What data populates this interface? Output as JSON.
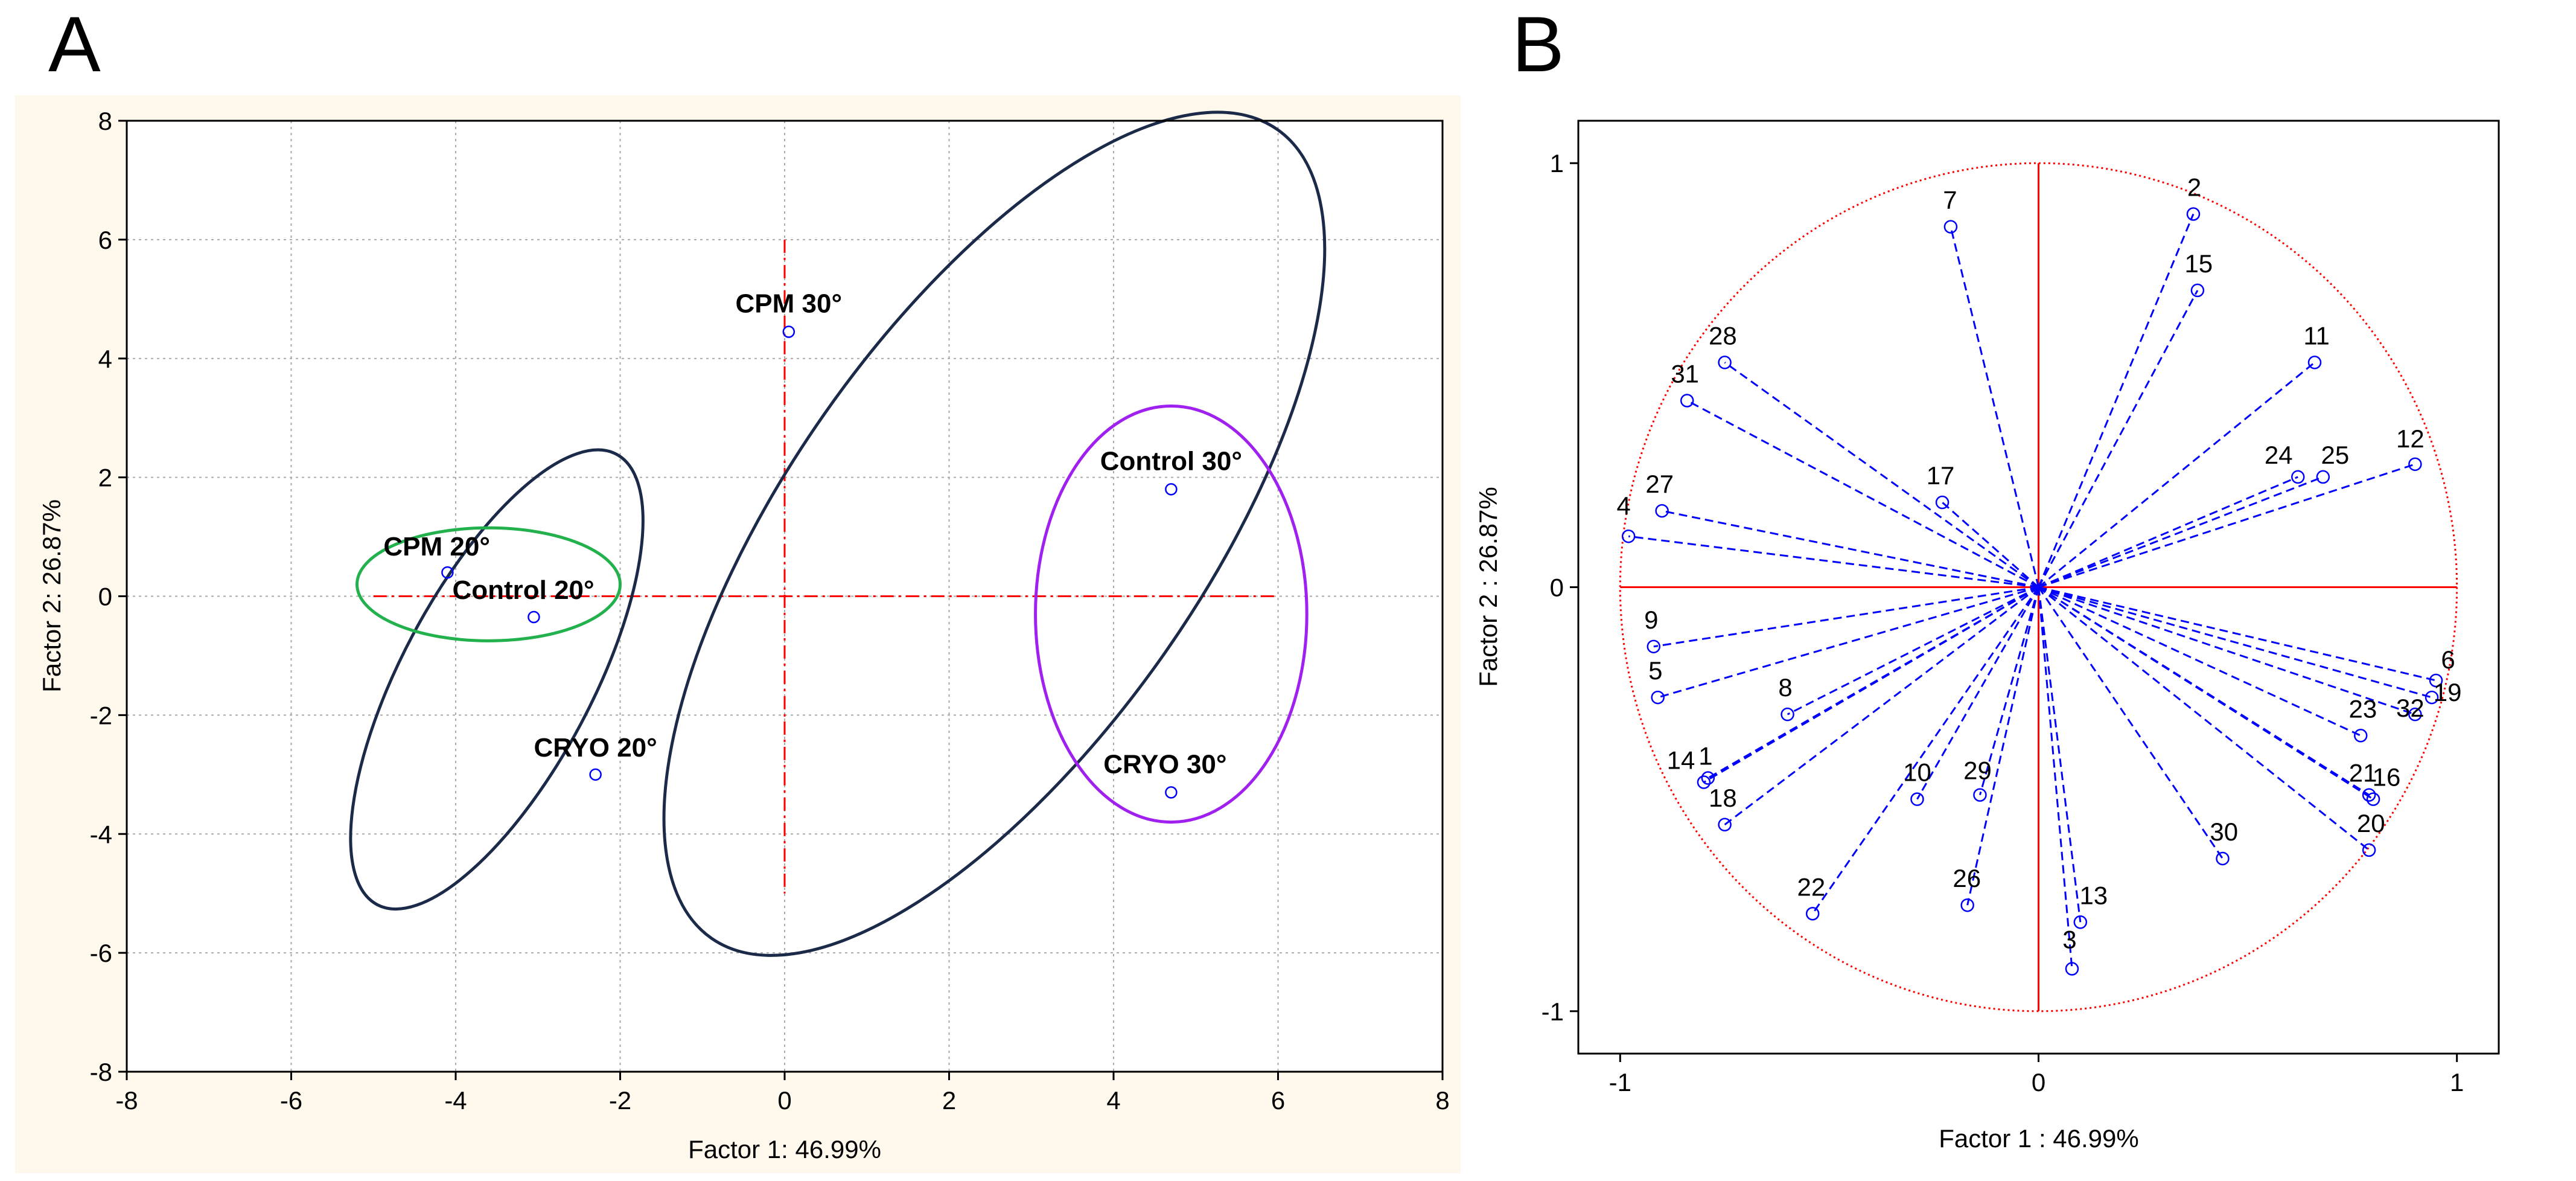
{
  "panel_labels": [
    "A",
    "B"
  ],
  "chart_data": [
    {
      "type": "scatter",
      "title": "",
      "xlabel": "Factor 1: 46.99%",
      "ylabel": "Factor 2: 26.87%",
      "xlim": [
        -8,
        8
      ],
      "ylim": [
        -8,
        8
      ],
      "xticks": [
        -8,
        -6,
        -4,
        -2,
        0,
        2,
        4,
        6,
        8
      ],
      "yticks": [
        -8,
        -6,
        -4,
        -2,
        0,
        2,
        4,
        6,
        8
      ],
      "grid": true,
      "point_color": "#0000ff",
      "points": [
        {
          "label": "CPM 20°",
          "x": -4.1,
          "y": 0.4
        },
        {
          "label": "Control 20°",
          "x": -3.05,
          "y": -0.35
        },
        {
          "label": "CRYO 20°",
          "x": -2.3,
          "y": -3.0
        },
        {
          "label": "CPM 30°",
          "x": 0.05,
          "y": 4.45
        },
        {
          "label": "Control 30°",
          "x": 4.7,
          "y": 1.8
        },
        {
          "label": "CRYO 30°",
          "x": 4.7,
          "y": -3.3
        }
      ],
      "ellipses": [
        {
          "group": "20° samples",
          "cx": -3.5,
          "cy": -1.4,
          "rx": 3.1,
          "ry": 1.6,
          "angle_deg": -62,
          "color": "#1c2a4a"
        },
        {
          "group": "CPM 20° / Control 20°",
          "cx": -3.6,
          "cy": 0.2,
          "rx": 1.6,
          "ry": 0.95,
          "angle_deg": 0,
          "color": "#22b14c"
        },
        {
          "group": "30° samples",
          "cx": 2.55,
          "cy": 1.05,
          "rx": 6.0,
          "ry": 3.5,
          "angle_deg": -55,
          "color": "#1c2a4a"
        },
        {
          "group": "Control 30° / CRYO 30°",
          "cx": 4.7,
          "cy": -0.3,
          "rx": 1.65,
          "ry": 3.5,
          "angle_deg": 0,
          "color": "#a020f0"
        }
      ],
      "reference_lines": {
        "color": "#ff0000",
        "horizontal_y": 0,
        "horizontal_x_range": [
          -5,
          6
        ],
        "vertical_x": 0,
        "vertical_y_range": [
          -5,
          6
        ]
      }
    },
    {
      "type": "scatter",
      "subtype": "correlation circle (loadings)",
      "title": "",
      "xlabel": "Factor 1 : 46.99%",
      "ylabel": "Factor 2 : 26.87%",
      "xlim": [
        -1.1,
        1.1
      ],
      "ylim": [
        -1.1,
        1.1
      ],
      "xticks": [
        -1,
        0,
        1
      ],
      "yticks": [
        -1,
        0,
        1
      ],
      "grid": false,
      "circle_color": "#ff0000",
      "vector_color": "#0000ff",
      "points": [
        {
          "label": "2",
          "x": 0.37,
          "y": 0.88
        },
        {
          "label": "7",
          "x": -0.21,
          "y": 0.85
        },
        {
          "label": "15",
          "x": 0.38,
          "y": 0.7
        },
        {
          "label": "11",
          "x": 0.66,
          "y": 0.53
        },
        {
          "label": "28",
          "x": -0.75,
          "y": 0.53
        },
        {
          "label": "31",
          "x": -0.84,
          "y": 0.44
        },
        {
          "label": "24",
          "x": 0.62,
          "y": 0.26
        },
        {
          "label": "25",
          "x": 0.68,
          "y": 0.26
        },
        {
          "label": "12",
          "x": 0.9,
          "y": 0.29
        },
        {
          "label": "17",
          "x": -0.23,
          "y": 0.2
        },
        {
          "label": "27",
          "x": -0.9,
          "y": 0.18
        },
        {
          "label": "4",
          "x": -0.98,
          "y": 0.12
        },
        {
          "label": "9",
          "x": -0.92,
          "y": -0.14
        },
        {
          "label": "5",
          "x": -0.91,
          "y": -0.26
        },
        {
          "label": "8",
          "x": -0.6,
          "y": -0.3
        },
        {
          "label": "6",
          "x": 0.95,
          "y": -0.22
        },
        {
          "label": "19",
          "x": 0.94,
          "y": -0.26
        },
        {
          "label": "32",
          "x": 0.9,
          "y": -0.3
        },
        {
          "label": "23",
          "x": 0.77,
          "y": -0.35
        },
        {
          "label": "1",
          "x": -0.79,
          "y": -0.45
        },
        {
          "label": "14",
          "x": -0.8,
          "y": -0.46
        },
        {
          "label": "18",
          "x": -0.75,
          "y": -0.56
        },
        {
          "label": "10",
          "x": -0.29,
          "y": -0.5
        },
        {
          "label": "29",
          "x": -0.14,
          "y": -0.49
        },
        {
          "label": "21",
          "x": 0.79,
          "y": -0.49
        },
        {
          "label": "16",
          "x": 0.8,
          "y": -0.5
        },
        {
          "label": "20",
          "x": 0.79,
          "y": -0.62
        },
        {
          "label": "30",
          "x": 0.44,
          "y": -0.64
        },
        {
          "label": "22",
          "x": -0.54,
          "y": -0.77
        },
        {
          "label": "26",
          "x": -0.17,
          "y": -0.75
        },
        {
          "label": "13",
          "x": 0.1,
          "y": -0.79
        },
        {
          "label": "3",
          "x": 0.08,
          "y": -0.9
        }
      ]
    }
  ]
}
